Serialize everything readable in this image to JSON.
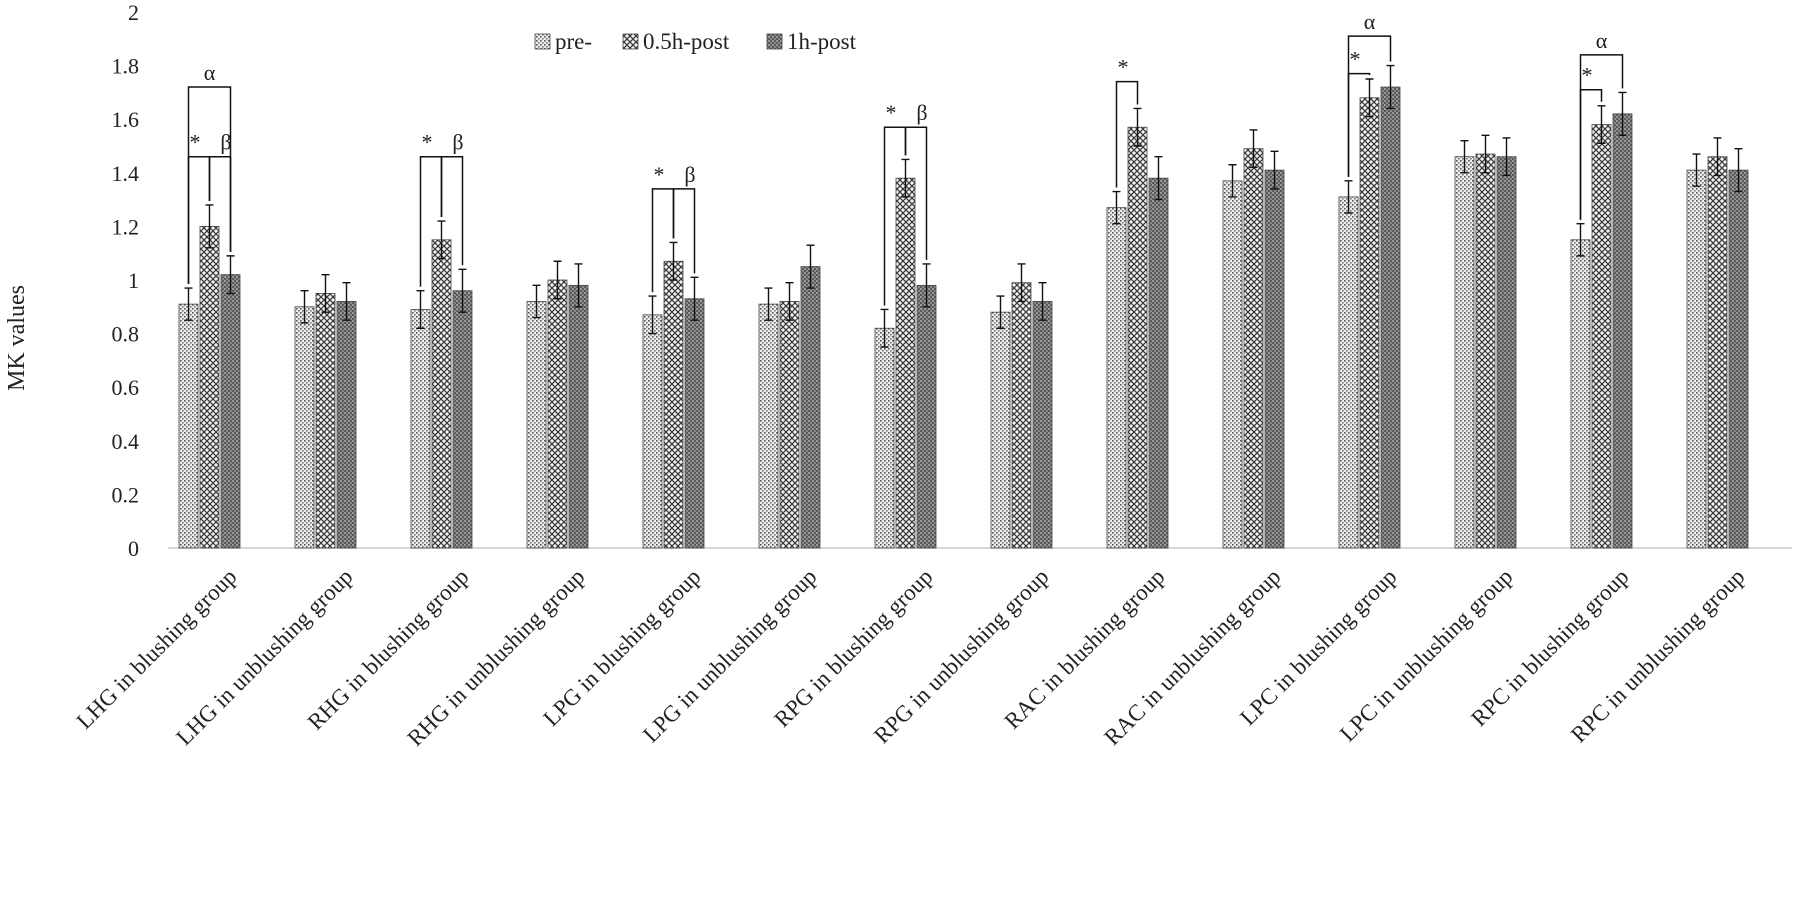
{
  "chart_data": {
    "type": "bar",
    "ylabel": "MK values",
    "xlabel": "",
    "ylim": [
      0,
      2
    ],
    "yticks": [
      "0",
      "0.2",
      "0.4",
      "0.6",
      "0.8",
      "1",
      "1.2",
      "1.4",
      "1.6",
      "1.8",
      "2"
    ],
    "grid": false,
    "legend_position": "top",
    "categories": [
      "LHG in blushing group",
      "LHG in unblushing group",
      "RHG in blushing group",
      "RHG in unblushing group",
      "LPG in blushing group",
      "LPG in unblushing group",
      "RPG in blushing group",
      "RPG in unblushing group",
      "RAC in blushing group",
      "RAC in unblushing group",
      "LPC in blushing group",
      "LPC in unblushing group",
      "RPC in blushing group",
      "RPC in unblushing group"
    ],
    "series": [
      {
        "name": "pre-",
        "pattern": "dots",
        "values": [
          0.91,
          0.9,
          0.89,
          0.92,
          0.87,
          0.91,
          0.82,
          0.88,
          1.27,
          1.37,
          1.31,
          1.46,
          1.15,
          1.41
        ],
        "errors": [
          0.06,
          0.06,
          0.07,
          0.06,
          0.07,
          0.06,
          0.07,
          0.06,
          0.06,
          0.06,
          0.06,
          0.06,
          0.06,
          0.06
        ]
      },
      {
        "name": "0.5h-post",
        "pattern": "crosshatch",
        "values": [
          1.2,
          0.95,
          1.15,
          1.0,
          1.07,
          0.92,
          1.38,
          0.99,
          1.57,
          1.49,
          1.68,
          1.47,
          1.58,
          1.46
        ],
        "errors": [
          0.08,
          0.07,
          0.07,
          0.07,
          0.07,
          0.07,
          0.07,
          0.07,
          0.07,
          0.07,
          0.07,
          0.07,
          0.07,
          0.07
        ]
      },
      {
        "name": "1h-post",
        "pattern": "dense",
        "values": [
          1.02,
          0.92,
          0.96,
          0.98,
          0.93,
          1.05,
          0.98,
          0.92,
          1.38,
          1.41,
          1.72,
          1.46,
          1.62,
          1.41
        ],
        "errors": [
          0.07,
          0.07,
          0.08,
          0.08,
          0.08,
          0.08,
          0.08,
          0.07,
          0.08,
          0.07,
          0.08,
          0.07,
          0.08,
          0.08
        ]
      }
    ],
    "annotations": [
      {
        "category": 0,
        "label": "α",
        "type": "bracket",
        "from": 0,
        "to": 2,
        "y": 1.72
      },
      {
        "category": 0,
        "label": "*",
        "type": "bracket",
        "from": 0,
        "to": 1,
        "y": 1.46
      },
      {
        "category": 0,
        "label": "β",
        "type": "bracket",
        "from": 1,
        "to": 2,
        "y": 1.46
      },
      {
        "category": 2,
        "label": "*",
        "type": "bracket",
        "from": 0,
        "to": 1,
        "y": 1.46
      },
      {
        "category": 2,
        "label": "β",
        "type": "bracket",
        "from": 1,
        "to": 2,
        "y": 1.46
      },
      {
        "category": 4,
        "label": "*",
        "type": "bracket",
        "from": 0,
        "to": 1,
        "y": 1.34
      },
      {
        "category": 4,
        "label": "β",
        "type": "bracket",
        "from": 1,
        "to": 2,
        "y": 1.34
      },
      {
        "category": 6,
        "label": "*",
        "type": "bracket",
        "from": 0,
        "to": 1,
        "y": 1.57
      },
      {
        "category": 6,
        "label": "β",
        "type": "bracket",
        "from": 1,
        "to": 2,
        "y": 1.57
      },
      {
        "category": 8,
        "label": "*",
        "type": "bracket",
        "from": 0,
        "to": 1,
        "y": 1.74
      },
      {
        "category": 10,
        "label": "α",
        "type": "bracket",
        "from": 0,
        "to": 2,
        "y": 1.91
      },
      {
        "category": 10,
        "label": "*",
        "type": "bracket",
        "from": 0,
        "to": 1,
        "y": 1.77
      },
      {
        "category": 12,
        "label": "α",
        "type": "bracket",
        "from": 0,
        "to": 2,
        "y": 1.84
      },
      {
        "category": 12,
        "label": "*",
        "type": "bracket",
        "from": 0,
        "to": 1,
        "y": 1.71
      }
    ]
  }
}
